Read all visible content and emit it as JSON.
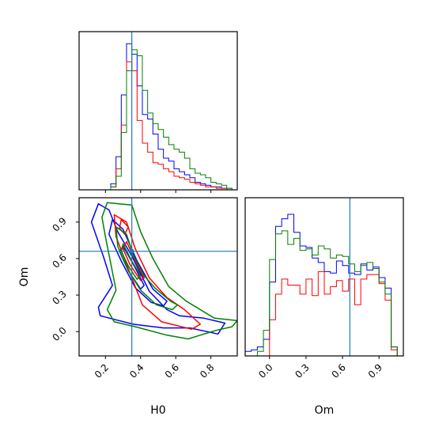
{
  "chart_data": {
    "type": "corner",
    "parameters": [
      "H0",
      "Om"
    ],
    "truth": {
      "H0": 0.35,
      "Om": 0.66
    },
    "truth_color": "#1f77b4",
    "series": [
      {
        "color": "#0000ff"
      },
      {
        "color": "#ff0000"
      },
      {
        "color": "#008000"
      }
    ],
    "panels": {
      "h0_hist": {
        "xlim": [
          0.05,
          0.95
        ],
        "ylim": [
          0,
          1.05
        ],
        "xticks": [
          0.2,
          0.4,
          0.6,
          0.8
        ],
        "xtick_labels": [],
        "bin_edges": [
          0.05,
          0.08,
          0.11,
          0.14,
          0.17,
          0.2,
          0.23,
          0.26,
          0.29,
          0.32,
          0.35,
          0.38,
          0.41,
          0.44,
          0.47,
          0.5,
          0.53,
          0.56,
          0.59,
          0.62,
          0.65,
          0.68,
          0.71,
          0.74,
          0.77,
          0.8,
          0.83,
          0.86,
          0.89,
          0.92,
          0.95
        ],
        "histograms": [
          {
            "series": 0,
            "counts": [
              0,
              0,
              0,
              0,
              0,
              0,
              0.04,
              0.22,
              0.63,
              0.97,
              0.9,
              0.69,
              0.5,
              0.47,
              0.37,
              0.27,
              0.21,
              0.19,
              0.14,
              0.12,
              0.1,
              0.08,
              0.05,
              0.04,
              0.03,
              0.02,
              0.02,
              0.01,
              0.01,
              0
            ]
          },
          {
            "series": 1,
            "counts": [
              0,
              0,
              0,
              0,
              0,
              0,
              0.02,
              0.14,
              0.43,
              0.85,
              0.79,
              0.46,
              0.31,
              0.25,
              0.18,
              0.17,
              0.14,
              0.12,
              0.09,
              0.08,
              0.07,
              0.05,
              0.04,
              0.03,
              0.02,
              0.02,
              0.01,
              0.01,
              0,
              0
            ]
          },
          {
            "series": 2,
            "counts": [
              0,
              0,
              0,
              0,
              0,
              0,
              0.02,
              0.09,
              0.38,
              0.79,
              0.93,
              0.89,
              0.66,
              0.51,
              0.44,
              0.4,
              0.35,
              0.3,
              0.27,
              0.25,
              0.21,
              0.14,
              0.11,
              0.1,
              0.08,
              0.05,
              0.04,
              0.03,
              0.01,
              0
            ]
          }
        ]
      },
      "om_hist": {
        "xlim": [
          -0.2,
          1.1
        ],
        "ylim": [
          0,
          1.05
        ],
        "xticks": [
          0.0,
          0.3,
          0.6,
          0.9
        ],
        "xtick_labels": [
          "0.0",
          "0.3",
          "0.6",
          "0.9"
        ],
        "xlabel": "Om",
        "bin_edges": [
          -0.2,
          -0.15,
          -0.1,
          -0.05,
          0.0,
          0.05,
          0.1,
          0.15,
          0.2,
          0.25,
          0.3,
          0.35,
          0.4,
          0.45,
          0.5,
          0.55,
          0.6,
          0.65,
          0.7,
          0.75,
          0.8,
          0.85,
          0.9,
          0.95,
          1.0,
          1.05,
          1.1
        ],
        "histograms": [
          {
            "series": 0,
            "counts": [
              0.03,
              0.04,
              0.06,
              0.11,
              0.49,
              0.86,
              0.91,
              0.94,
              0.82,
              0.73,
              0.72,
              0.65,
              0.62,
              0.56,
              0.55,
              0.63,
              0.6,
              0.55,
              0.54,
              0.61,
              0.57,
              0.59,
              0.52,
              0.45,
              0.06,
              0
            ]
          },
          {
            "series": 1,
            "counts": [
              0,
              0,
              0,
              0,
              0.24,
              0.41,
              0.51,
              0.47,
              0.47,
              0.41,
              0.51,
              0.4,
              0.56,
              0.41,
              0.46,
              0.5,
              0.43,
              0.51,
              0.34,
              0.51,
              0.54,
              0.54,
              0.48,
              0.37,
              0.04,
              0
            ]
          },
          {
            "series": 2,
            "counts": [
              0,
              0,
              0.03,
              0.17,
              0.64,
              0.81,
              0.83,
              0.74,
              0.78,
              0.7,
              0.71,
              0.67,
              0.73,
              0.71,
              0.65,
              0.67,
              0.66,
              0.61,
              0.56,
              0.6,
              0.62,
              0.58,
              0.49,
              0.41,
              0.06,
              0
            ]
          }
        ]
      },
      "joint": {
        "xlim": [
          0.05,
          0.95
        ],
        "ylim": [
          -0.2,
          1.1
        ],
        "xticks": [
          0.2,
          0.4,
          0.6,
          0.8
        ],
        "xtick_labels": [
          "0.2",
          "0.4",
          "0.6",
          "0.8"
        ],
        "yticks": [
          0.0,
          0.3,
          0.6,
          0.9
        ],
        "ytick_labels": [
          "0.0",
          "0.3",
          "0.6",
          "0.9"
        ],
        "xlabel": "H0",
        "ylabel": "Om",
        "contours": [
          {
            "series": 0,
            "points": [
              [
                0.16,
                1.05
              ],
              [
                0.22,
                1.0
              ],
              [
                0.27,
                0.82
              ],
              [
                0.35,
                0.62
              ],
              [
                0.45,
                0.33
              ],
              [
                0.55,
                0.18
              ],
              [
                0.62,
                0.13
              ],
              [
                0.76,
                0.11
              ],
              [
                0.88,
                0.07
              ],
              [
                0.84,
                -0.02
              ],
              [
                0.68,
                0.03
              ],
              [
                0.53,
                0.03
              ],
              [
                0.36,
                0.06
              ],
              [
                0.25,
                0.1
              ],
              [
                0.17,
                0.13
              ],
              [
                0.16,
                0.2
              ],
              [
                0.24,
                0.38
              ],
              [
                0.19,
                0.61
              ],
              [
                0.12,
                0.9
              ],
              [
                0.16,
                1.05
              ]
            ]
          },
          {
            "series": 0,
            "points": [
              [
                0.24,
                0.92
              ],
              [
                0.3,
                0.84
              ],
              [
                0.38,
                0.58
              ],
              [
                0.47,
                0.35
              ],
              [
                0.55,
                0.25
              ],
              [
                0.53,
                0.21
              ],
              [
                0.46,
                0.24
              ],
              [
                0.37,
                0.36
              ],
              [
                0.29,
                0.58
              ],
              [
                0.22,
                0.8
              ],
              [
                0.24,
                0.92
              ]
            ]
          },
          {
            "series": 0,
            "points": [
              [
                0.3,
                0.7
              ],
              [
                0.36,
                0.55
              ],
              [
                0.42,
                0.38
              ],
              [
                0.4,
                0.35
              ],
              [
                0.33,
                0.5
              ],
              [
                0.28,
                0.66
              ],
              [
                0.3,
                0.7
              ]
            ]
          },
          {
            "series": 1,
            "points": [
              [
                0.25,
                0.96
              ],
              [
                0.32,
                0.9
              ],
              [
                0.37,
                0.68
              ],
              [
                0.45,
                0.44
              ],
              [
                0.55,
                0.28
              ],
              [
                0.65,
                0.18
              ],
              [
                0.74,
                0.06
              ],
              [
                0.69,
                0.02
              ],
              [
                0.52,
                0.08
              ],
              [
                0.41,
                0.22
              ],
              [
                0.34,
                0.48
              ],
              [
                0.26,
                0.78
              ],
              [
                0.25,
                0.96
              ]
            ]
          },
          {
            "series": 1,
            "points": [
              [
                0.29,
                0.92
              ],
              [
                0.33,
                0.86
              ],
              [
                0.31,
                0.8
              ],
              [
                0.28,
                0.85
              ],
              [
                0.29,
                0.92
              ]
            ]
          },
          {
            "series": 1,
            "points": [
              [
                0.32,
                0.74
              ],
              [
                0.37,
                0.58
              ],
              [
                0.42,
                0.44
              ],
              [
                0.4,
                0.42
              ],
              [
                0.34,
                0.55
              ],
              [
                0.3,
                0.68
              ],
              [
                0.32,
                0.74
              ]
            ]
          },
          {
            "series": 2,
            "points": [
              [
                0.21,
                1.06
              ],
              [
                0.35,
                1.04
              ],
              [
                0.4,
                0.82
              ],
              [
                0.47,
                0.6
              ],
              [
                0.56,
                0.37
              ],
              [
                0.66,
                0.25
              ],
              [
                0.82,
                0.11
              ],
              [
                0.95,
                0.09
              ],
              [
                0.92,
                0.04
              ],
              [
                0.83,
                0.01
              ],
              [
                0.67,
                -0.06
              ],
              [
                0.55,
                -0.03
              ],
              [
                0.37,
                0.04
              ],
              [
                0.25,
                0.08
              ],
              [
                0.21,
                0.18
              ],
              [
                0.26,
                0.34
              ],
              [
                0.23,
                0.56
              ],
              [
                0.2,
                0.78
              ],
              [
                0.18,
                0.94
              ],
              [
                0.21,
                1.06
              ]
            ]
          },
          {
            "series": 2,
            "points": [
              [
                0.26,
                0.86
              ],
              [
                0.32,
                0.8
              ],
              [
                0.36,
                0.62
              ],
              [
                0.42,
                0.46
              ],
              [
                0.48,
                0.36
              ],
              [
                0.57,
                0.25
              ],
              [
                0.61,
                0.22
              ],
              [
                0.58,
                0.18
              ],
              [
                0.49,
                0.22
              ],
              [
                0.4,
                0.34
              ],
              [
                0.33,
                0.5
              ],
              [
                0.27,
                0.7
              ],
              [
                0.26,
                0.86
              ]
            ]
          },
          {
            "series": 2,
            "points": [
              [
                0.3,
                0.72
              ],
              [
                0.35,
                0.58
              ],
              [
                0.4,
                0.46
              ],
              [
                0.38,
                0.43
              ],
              [
                0.33,
                0.54
              ],
              [
                0.29,
                0.66
              ],
              [
                0.3,
                0.72
              ]
            ]
          }
        ]
      }
    }
  }
}
